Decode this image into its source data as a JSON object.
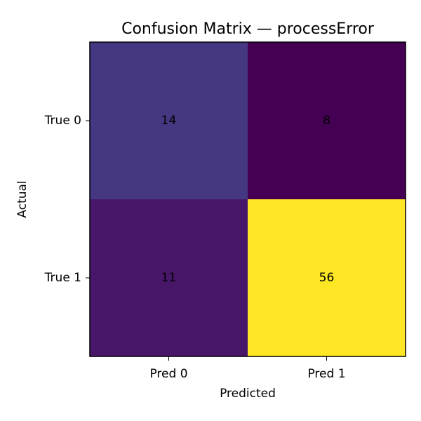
{
  "chart_data": {
    "type": "heatmap",
    "title": "Confusion Matrix — processError",
    "xlabel": "Predicted",
    "ylabel": "Actual",
    "x_categories": [
      "Pred 0",
      "Pred 1"
    ],
    "y_categories": [
      "True 0",
      "True 1"
    ],
    "values": [
      [
        14,
        8
      ],
      [
        11,
        56
      ]
    ],
    "colormap": "viridis",
    "cell_colors": [
      [
        "#453781",
        "#440154"
      ],
      [
        "#481769",
        "#fde725"
      ]
    ],
    "label_color": "#000000",
    "grid": false
  }
}
